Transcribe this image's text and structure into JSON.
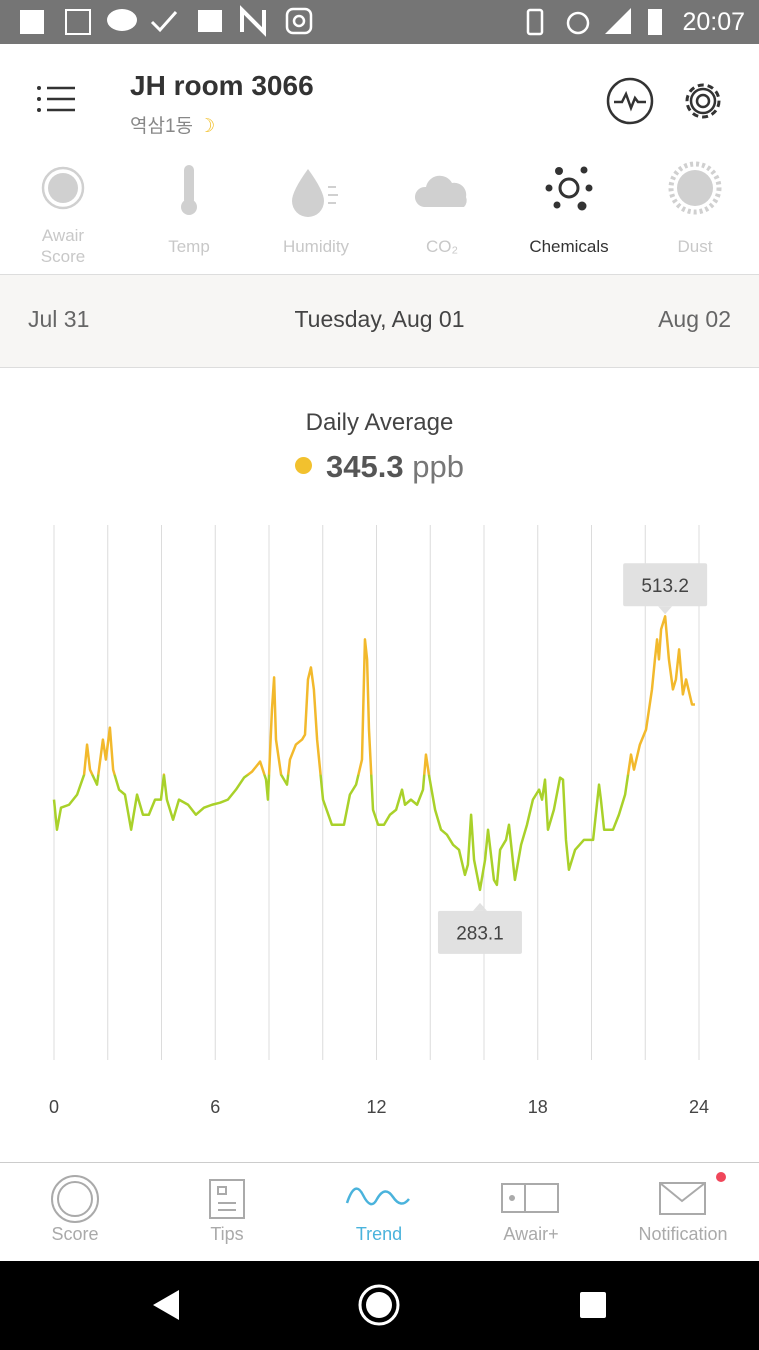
{
  "status_bar": {
    "time": "20:07"
  },
  "header": {
    "title": "JH room 3066",
    "subtitle": "역삼1동"
  },
  "tabs": [
    {
      "label": "Awair Score",
      "active": false
    },
    {
      "label": "Temp",
      "active": false
    },
    {
      "label": "Humidity",
      "active": false
    },
    {
      "label": "CO₂",
      "active": false
    },
    {
      "label": "Chemicals",
      "active": true
    },
    {
      "label": "Dust",
      "active": false
    }
  ],
  "date_nav": {
    "prev": "Jul 31",
    "current": "Tuesday, Aug 01",
    "next": "Aug 02"
  },
  "summary": {
    "label": "Daily Average",
    "value": 345.3,
    "unit": "ppb",
    "color": "#f2c12e"
  },
  "chart_data": {
    "type": "line",
    "x": [
      0,
      0.11,
      0.26,
      0.56,
      0.86,
      1.12,
      1.23,
      1.34,
      1.6,
      1.82,
      1.93,
      2.08,
      2.2,
      2.42,
      2.64,
      2.87,
      3.09,
      3.31,
      3.53,
      3.76,
      3.98,
      4.09,
      4.2,
      4.43,
      4.65,
      4.99,
      5.28,
      5.58,
      5.88,
      6.18,
      6.47,
      6.77,
      7.07,
      7.37,
      7.67,
      7.89,
      7.96,
      8.11,
      8.19,
      8.26,
      8.45,
      8.67,
      8.78,
      9.0,
      9.23,
      9.34,
      9.45,
      9.56,
      9.67,
      9.79,
      10.01,
      10.34,
      10.57,
      10.79,
      11.01,
      11.24,
      11.46,
      11.57,
      11.65,
      11.72,
      11.87,
      12.06,
      12.28,
      12.5,
      12.73,
      12.95,
      13.06,
      13.28,
      13.51,
      13.73,
      13.84,
      13.95,
      14.18,
      14.4,
      14.62,
      14.85,
      15.07,
      15.29,
      15.4,
      15.52,
      15.63,
      15.85,
      16.04,
      16.15,
      16.37,
      16.48,
      16.6,
      16.82,
      16.93,
      17.15,
      17.38,
      17.6,
      17.82,
      18.05,
      18.16,
      18.27,
      18.38,
      18.6,
      18.83,
      18.94,
      19.05,
      19.16,
      19.39,
      19.72,
      20.06,
      20.28,
      20.35,
      20.47,
      20.8,
      21.02,
      21.25,
      21.47,
      21.58,
      21.8,
      22.03,
      22.25,
      22.36,
      22.44,
      22.51,
      22.59,
      22.74,
      22.88,
      23.03,
      23.14,
      23.26,
      23.4,
      23.52,
      23.74,
      23.85
    ],
    "values": [
      359.0,
      333.7,
      352.2,
      354.7,
      363.2,
      380.0,
      405.3,
      384.2,
      371.6,
      409.5,
      392.7,
      419.6,
      384.2,
      367.4,
      363.2,
      333.7,
      363.2,
      346.3,
      346.3,
      359.0,
      359.0,
      380.0,
      359.0,
      342.1,
      359.0,
      354.7,
      346.3,
      352.2,
      354.7,
      356.4,
      359.0,
      367.4,
      377.5,
      382.6,
      391.0,
      375.8,
      359.0,
      434.8,
      461.8,
      409.5,
      380.0,
      371.6,
      392.7,
      405.3,
      409.5,
      413.7,
      460.1,
      470.2,
      451.7,
      409.5,
      359.0,
      337.9,
      337.9,
      337.9,
      363.2,
      371.6,
      392.7,
      493.8,
      477.0,
      418.0,
      350.5,
      337.9,
      337.9,
      346.3,
      350.5,
      367.4,
      354.7,
      359.0,
      354.7,
      367.4,
      396.9,
      380.0,
      350.5,
      333.7,
      329.5,
      321.0,
      316.8,
      295.7,
      304.2,
      346.3,
      308.4,
      283.1,
      308.4,
      333.7,
      291.5,
      287.3,
      316.8,
      325.2,
      337.9,
      291.5,
      321.0,
      337.9,
      359.0,
      367.4,
      359.0,
      375.8,
      333.7,
      350.5,
      377.5,
      375.8,
      325.2,
      300.0,
      316.8,
      325.2,
      325.2,
      371.6,
      359.0,
      333.7,
      333.7,
      346.3,
      363.2,
      396.9,
      384.2,
      405.3,
      418.0,
      451.7,
      477.0,
      493.8,
      477.0,
      502.3,
      513.2,
      477.0,
      451.7,
      460.1,
      485.4,
      447.5,
      460.1,
      439.0,
      439.0
    ],
    "colors": {
      "above": "#f2b92c",
      "below": "#a9d12a"
    },
    "color_split": 380,
    "xlim": [
      0,
      24
    ],
    "xticks": [
      0,
      6,
      12,
      18,
      24
    ],
    "xgrid": [
      0,
      2,
      4,
      6,
      8,
      10,
      12,
      14,
      16,
      18,
      20,
      22,
      24
    ],
    "ylim": [
      140,
      590
    ],
    "annotations": [
      {
        "x": 22.74,
        "value": 513.2,
        "position": "above"
      },
      {
        "x": 15.85,
        "value": 283.1,
        "position": "below"
      }
    ]
  },
  "bottom_nav": [
    {
      "label": "Score",
      "active": false
    },
    {
      "label": "Tips",
      "active": false
    },
    {
      "label": "Trend",
      "active": true
    },
    {
      "label": "Awair+",
      "active": false
    },
    {
      "label": "Notification",
      "active": false
    }
  ]
}
